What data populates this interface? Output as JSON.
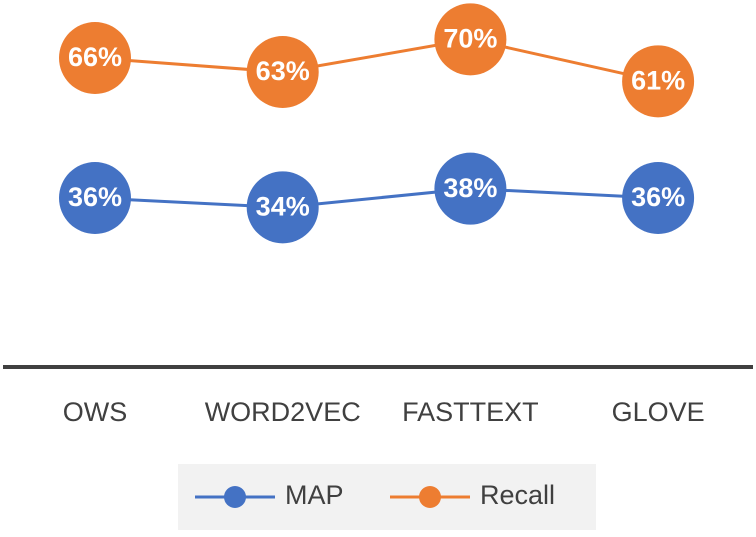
{
  "chart_data": {
    "type": "line",
    "categories": [
      "OWS",
      "WORD2VEC",
      "FASTTEXT",
      "GLOVE"
    ],
    "series": [
      {
        "name": "MAP",
        "color": "#4472c4",
        "values": [
          36,
          34,
          38,
          36
        ],
        "value_labels": [
          "36%",
          "34%",
          "38%",
          "36%"
        ]
      },
      {
        "name": "Recall",
        "color": "#ed7d31",
        "values": [
          66,
          63,
          70,
          61
        ],
        "value_labels": [
          "66%",
          "63%",
          "70%",
          "61%"
        ]
      }
    ],
    "ylim": [
      0,
      78
    ]
  }
}
